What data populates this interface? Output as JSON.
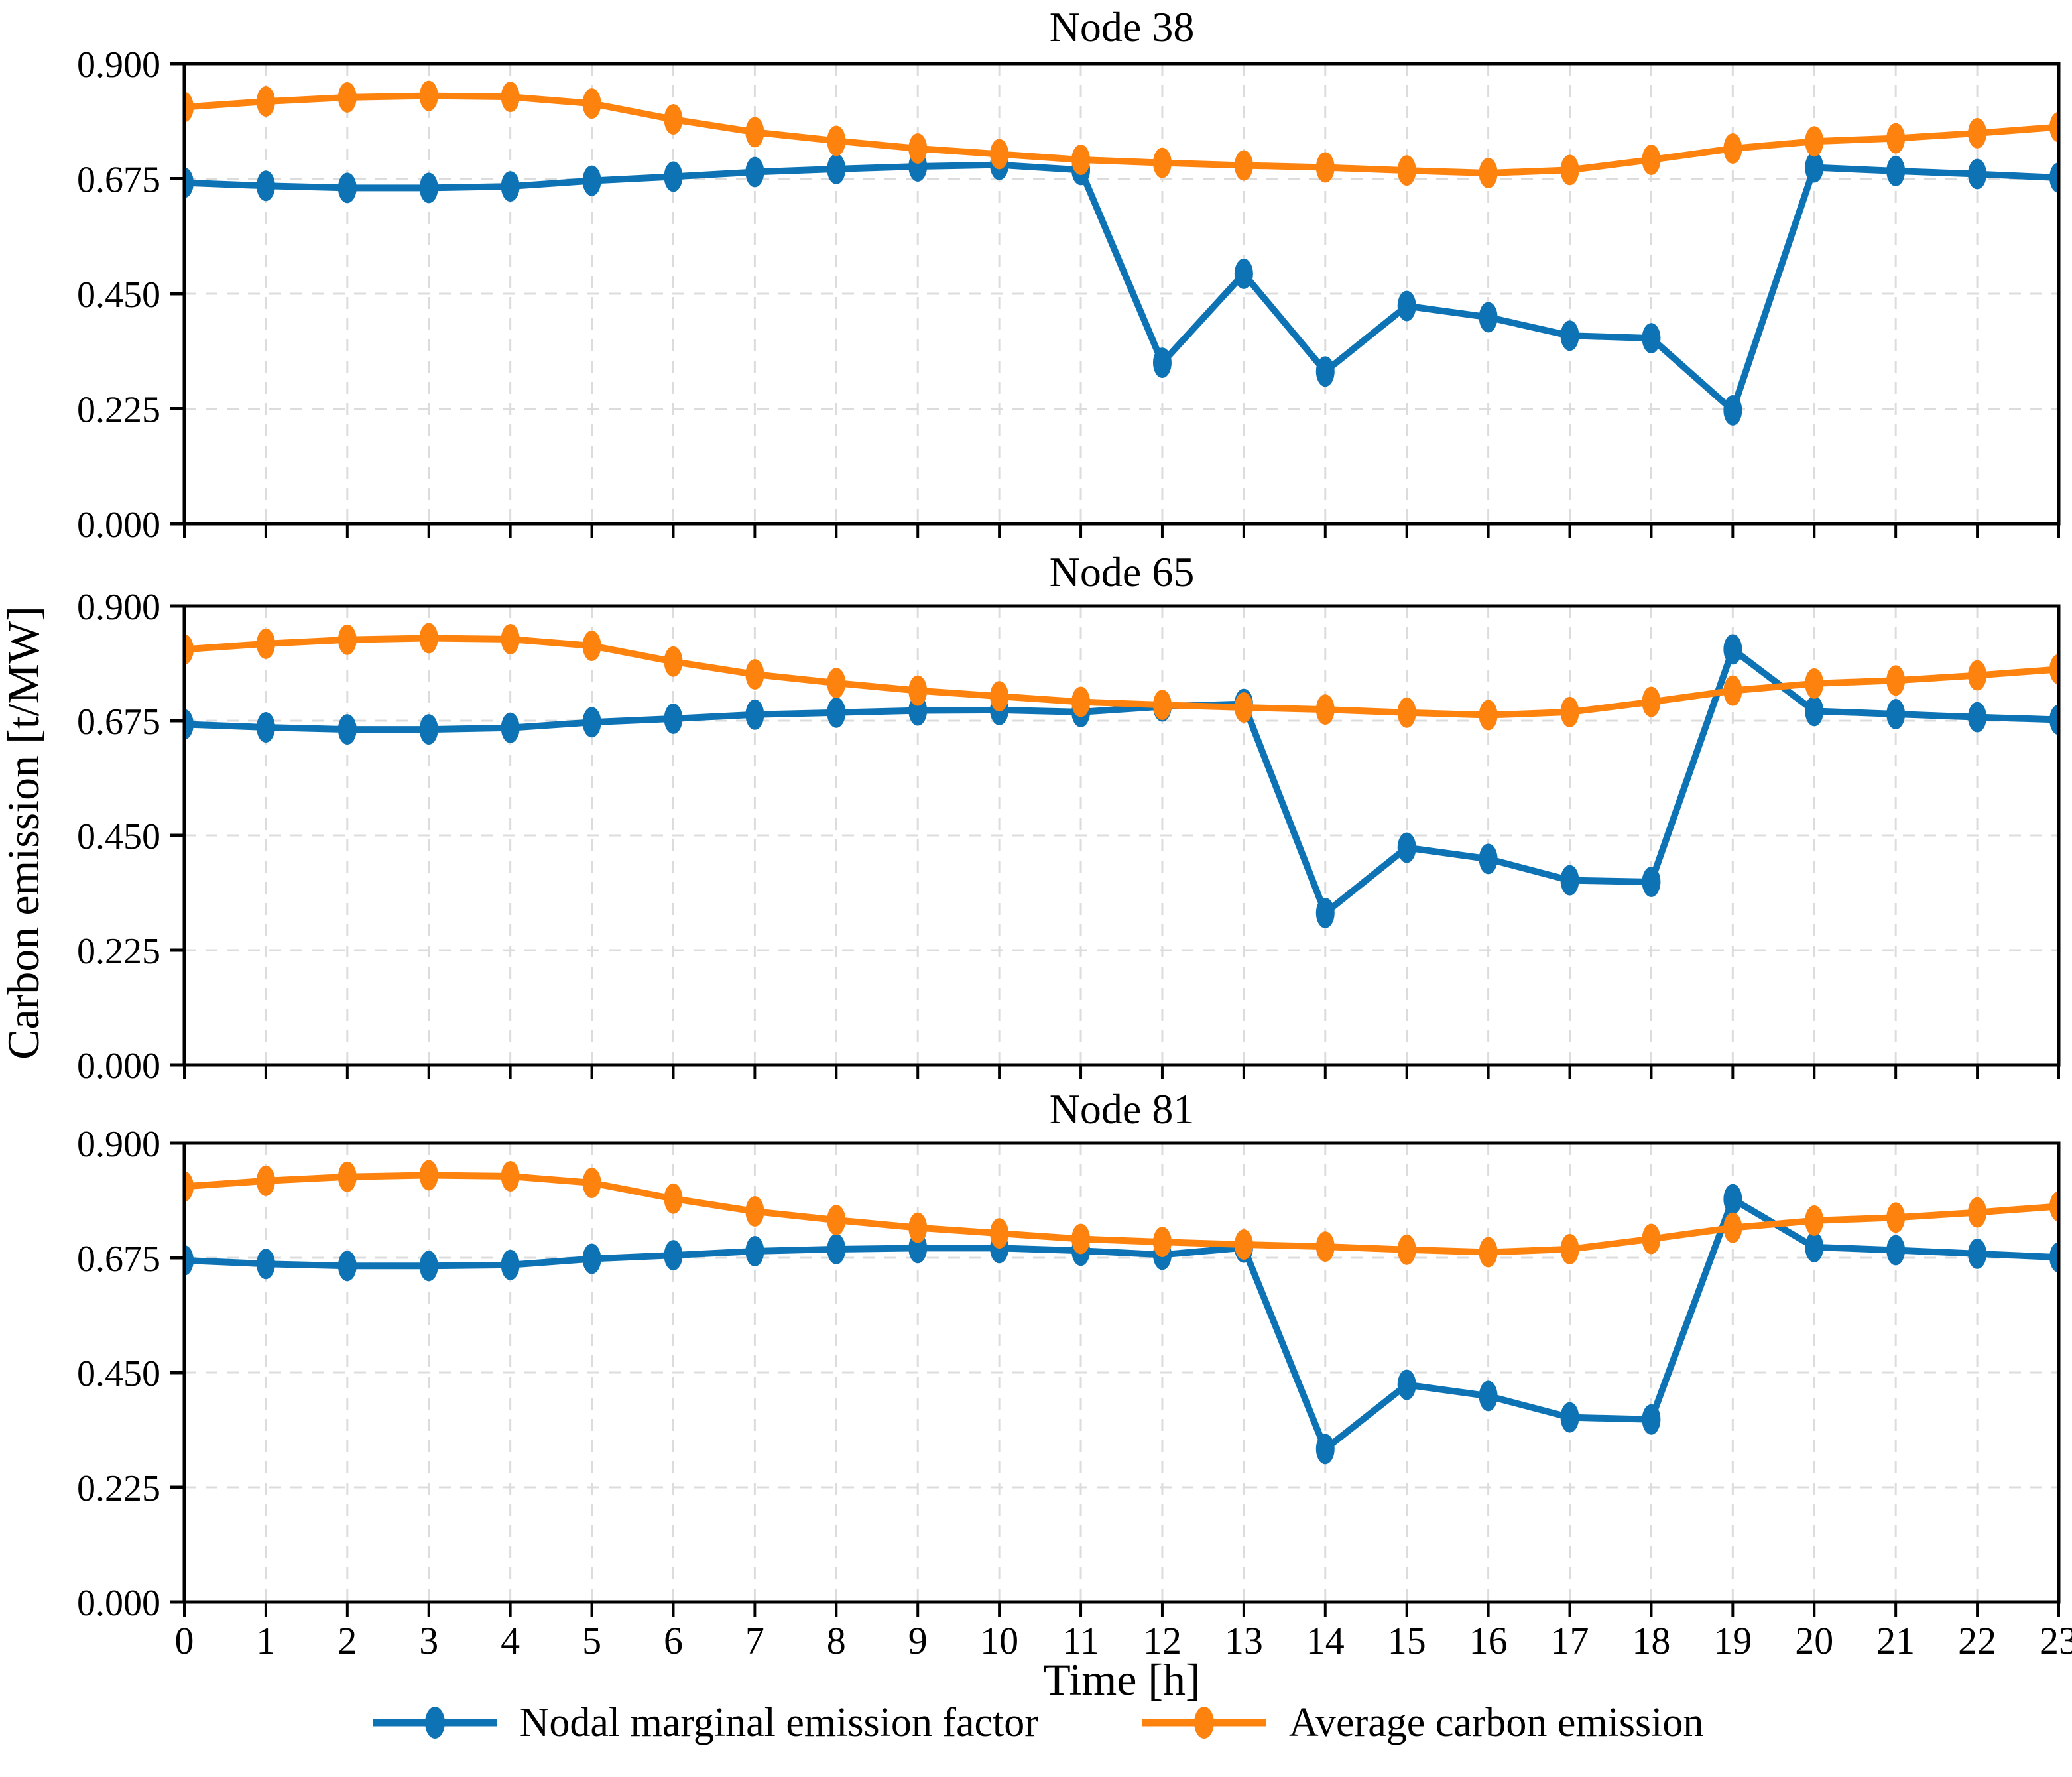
{
  "figure": {
    "ylabel": "Carbon emission [t/MW]",
    "xlabel": "Time [h]",
    "colors": {
      "nodal": "#0d73b4",
      "average": "#fd820e",
      "grid": "#dcdcdc",
      "spine": "#000000",
      "background": "#ffffff"
    },
    "legend": [
      {
        "label": "Nodal marginal emission factor",
        "series_key": "nodal"
      },
      {
        "label": "Average carbon emission",
        "series_key": "average"
      }
    ]
  },
  "chart_data": [
    {
      "type": "line",
      "title": "Node 38",
      "xlabel": "Time [h]",
      "ylabel": "Carbon emission [t/MW]",
      "x": [
        0,
        1,
        2,
        3,
        4,
        5,
        6,
        7,
        8,
        9,
        10,
        11,
        12,
        13,
        14,
        15,
        16,
        17,
        18,
        19,
        20,
        21,
        22,
        23
      ],
      "xlim": [
        0,
        23
      ],
      "ylim": [
        0,
        0.9
      ],
      "yticks": [
        0.0,
        0.225,
        0.45,
        0.675,
        0.9
      ],
      "ytick_labels": [
        "0.000",
        "0.225",
        "0.450",
        "0.675",
        "0.900"
      ],
      "grid": true,
      "legend_position": "below-figure",
      "series": [
        {
          "name": "Nodal marginal emission factor",
          "color_key": "nodal",
          "values": [
            0.667,
            0.661,
            0.657,
            0.657,
            0.66,
            0.671,
            0.679,
            0.688,
            0.694,
            0.699,
            0.702,
            0.692,
            0.315,
            0.489,
            0.298,
            0.426,
            0.404,
            0.368,
            0.363,
            0.222,
            0.697,
            0.69,
            0.684,
            0.677
          ]
        },
        {
          "name": "Average carbon emission",
          "color_key": "average",
          "values": [
            0.815,
            0.826,
            0.834,
            0.837,
            0.835,
            0.822,
            0.791,
            0.766,
            0.749,
            0.734,
            0.723,
            0.712,
            0.706,
            0.701,
            0.697,
            0.691,
            0.686,
            0.692,
            0.712,
            0.734,
            0.748,
            0.754,
            0.764,
            0.776
          ]
        }
      ]
    },
    {
      "type": "line",
      "title": "Node 65",
      "xlabel": "Time [h]",
      "ylabel": "Carbon emission [t/MW]",
      "x": [
        0,
        1,
        2,
        3,
        4,
        5,
        6,
        7,
        8,
        9,
        10,
        11,
        12,
        13,
        14,
        15,
        16,
        17,
        18,
        19,
        20,
        21,
        22,
        23
      ],
      "xlim": [
        0,
        23
      ],
      "ylim": [
        0,
        0.9
      ],
      "yticks": [
        0.0,
        0.225,
        0.45,
        0.675,
        0.9
      ],
      "ytick_labels": [
        "0.000",
        "0.225",
        "0.450",
        "0.675",
        "0.900"
      ],
      "grid": true,
      "legend_position": "below-figure",
      "series": [
        {
          "name": "Nodal marginal emission factor",
          "color_key": "nodal",
          "values": [
            0.668,
            0.662,
            0.658,
            0.658,
            0.661,
            0.672,
            0.679,
            0.687,
            0.691,
            0.695,
            0.696,
            0.692,
            0.703,
            0.708,
            0.298,
            0.426,
            0.404,
            0.362,
            0.359,
            0.815,
            0.694,
            0.688,
            0.682,
            0.677
          ]
        },
        {
          "name": "Average carbon emission",
          "color_key": "average",
          "values": [
            0.815,
            0.826,
            0.834,
            0.837,
            0.835,
            0.822,
            0.791,
            0.766,
            0.749,
            0.734,
            0.723,
            0.712,
            0.706,
            0.701,
            0.697,
            0.691,
            0.686,
            0.692,
            0.712,
            0.734,
            0.748,
            0.754,
            0.764,
            0.776
          ]
        }
      ]
    },
    {
      "type": "line",
      "title": "Node 81",
      "xlabel": "Time [h]",
      "ylabel": "Carbon emission [t/MW]",
      "x": [
        0,
        1,
        2,
        3,
        4,
        5,
        6,
        7,
        8,
        9,
        10,
        11,
        12,
        13,
        14,
        15,
        16,
        17,
        18,
        19,
        20,
        21,
        22,
        23
      ],
      "xlim": [
        0,
        23
      ],
      "ylim": [
        0,
        0.9
      ],
      "yticks": [
        0.0,
        0.225,
        0.45,
        0.675,
        0.9
      ],
      "ytick_labels": [
        "0.000",
        "0.225",
        "0.450",
        "0.675",
        "0.900"
      ],
      "grid": true,
      "legend_position": "below-figure",
      "series": [
        {
          "name": "Nodal marginal emission factor",
          "color_key": "nodal",
          "values": [
            0.67,
            0.663,
            0.659,
            0.659,
            0.661,
            0.673,
            0.68,
            0.688,
            0.692,
            0.694,
            0.694,
            0.689,
            0.681,
            0.695,
            0.3,
            0.426,
            0.404,
            0.362,
            0.358,
            0.79,
            0.696,
            0.69,
            0.683,
            0.676
          ]
        },
        {
          "name": "Average carbon emission",
          "color_key": "average",
          "values": [
            0.815,
            0.826,
            0.834,
            0.837,
            0.835,
            0.822,
            0.791,
            0.766,
            0.749,
            0.734,
            0.723,
            0.712,
            0.706,
            0.701,
            0.697,
            0.691,
            0.686,
            0.692,
            0.712,
            0.734,
            0.748,
            0.754,
            0.764,
            0.776
          ]
        }
      ]
    }
  ]
}
